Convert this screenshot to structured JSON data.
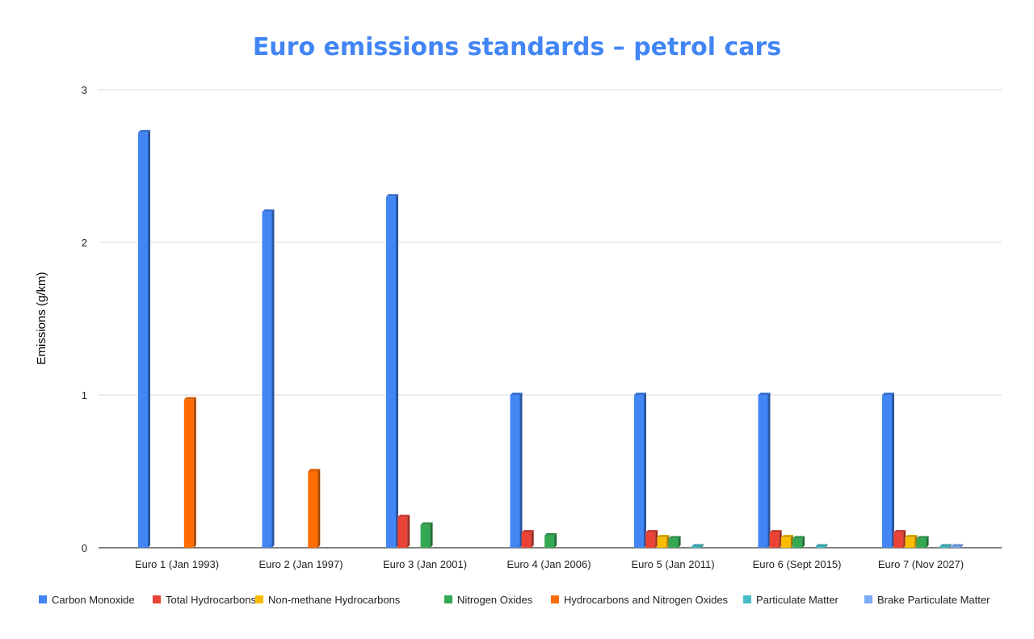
{
  "chart_data": {
    "type": "bar",
    "title": "Euro emissions standards – petrol cars",
    "xlabel": "",
    "ylabel": "Emissions (g/km)",
    "ylim": [
      0,
      3
    ],
    "yticks": [
      "0",
      "1",
      "2",
      "3"
    ],
    "grid": true,
    "legend_position": "bottom",
    "style": "3d",
    "categories": [
      "Euro 1 (Jan 1993)",
      "Euro 2 (Jan 1997)",
      "Euro 3 (Jan 2001)",
      "Euro 4 (Jan 2006)",
      "Euro 5 (Jan 2011)",
      "Euro 6 (Sept 2015)",
      "Euro 7 (Nov 2027)"
    ],
    "series": [
      {
        "name": "Carbon Monoxide",
        "color": "#4285f4",
        "values": [
          2.72,
          2.2,
          2.3,
          1.0,
          1.0,
          1.0,
          1.0
        ]
      },
      {
        "name": "Total Hydrocarbons",
        "color": "#ea4335",
        "values": [
          null,
          null,
          0.2,
          0.1,
          0.1,
          0.1,
          0.1
        ]
      },
      {
        "name": "Non-methane Hydrocarbons",
        "color": "#fbbc04",
        "values": [
          null,
          null,
          null,
          null,
          0.068,
          0.068,
          0.068
        ]
      },
      {
        "name": "Nitrogen Oxides",
        "color": "#34a853",
        "values": [
          null,
          null,
          0.15,
          0.08,
          0.06,
          0.06,
          0.06
        ]
      },
      {
        "name": "Hydrocarbons and Nitrogen Oxides",
        "color": "#ff6d01",
        "values": [
          0.97,
          0.5,
          null,
          null,
          null,
          null,
          null
        ]
      },
      {
        "name": "Particulate Matter",
        "color": "#46bdc6",
        "values": [
          null,
          null,
          null,
          null,
          0.005,
          0.005,
          0.005
        ]
      },
      {
        "name": "Brake Particulate Matter",
        "color": "#7baaf7",
        "values": [
          null,
          null,
          null,
          null,
          null,
          null,
          0.007
        ]
      }
    ]
  }
}
